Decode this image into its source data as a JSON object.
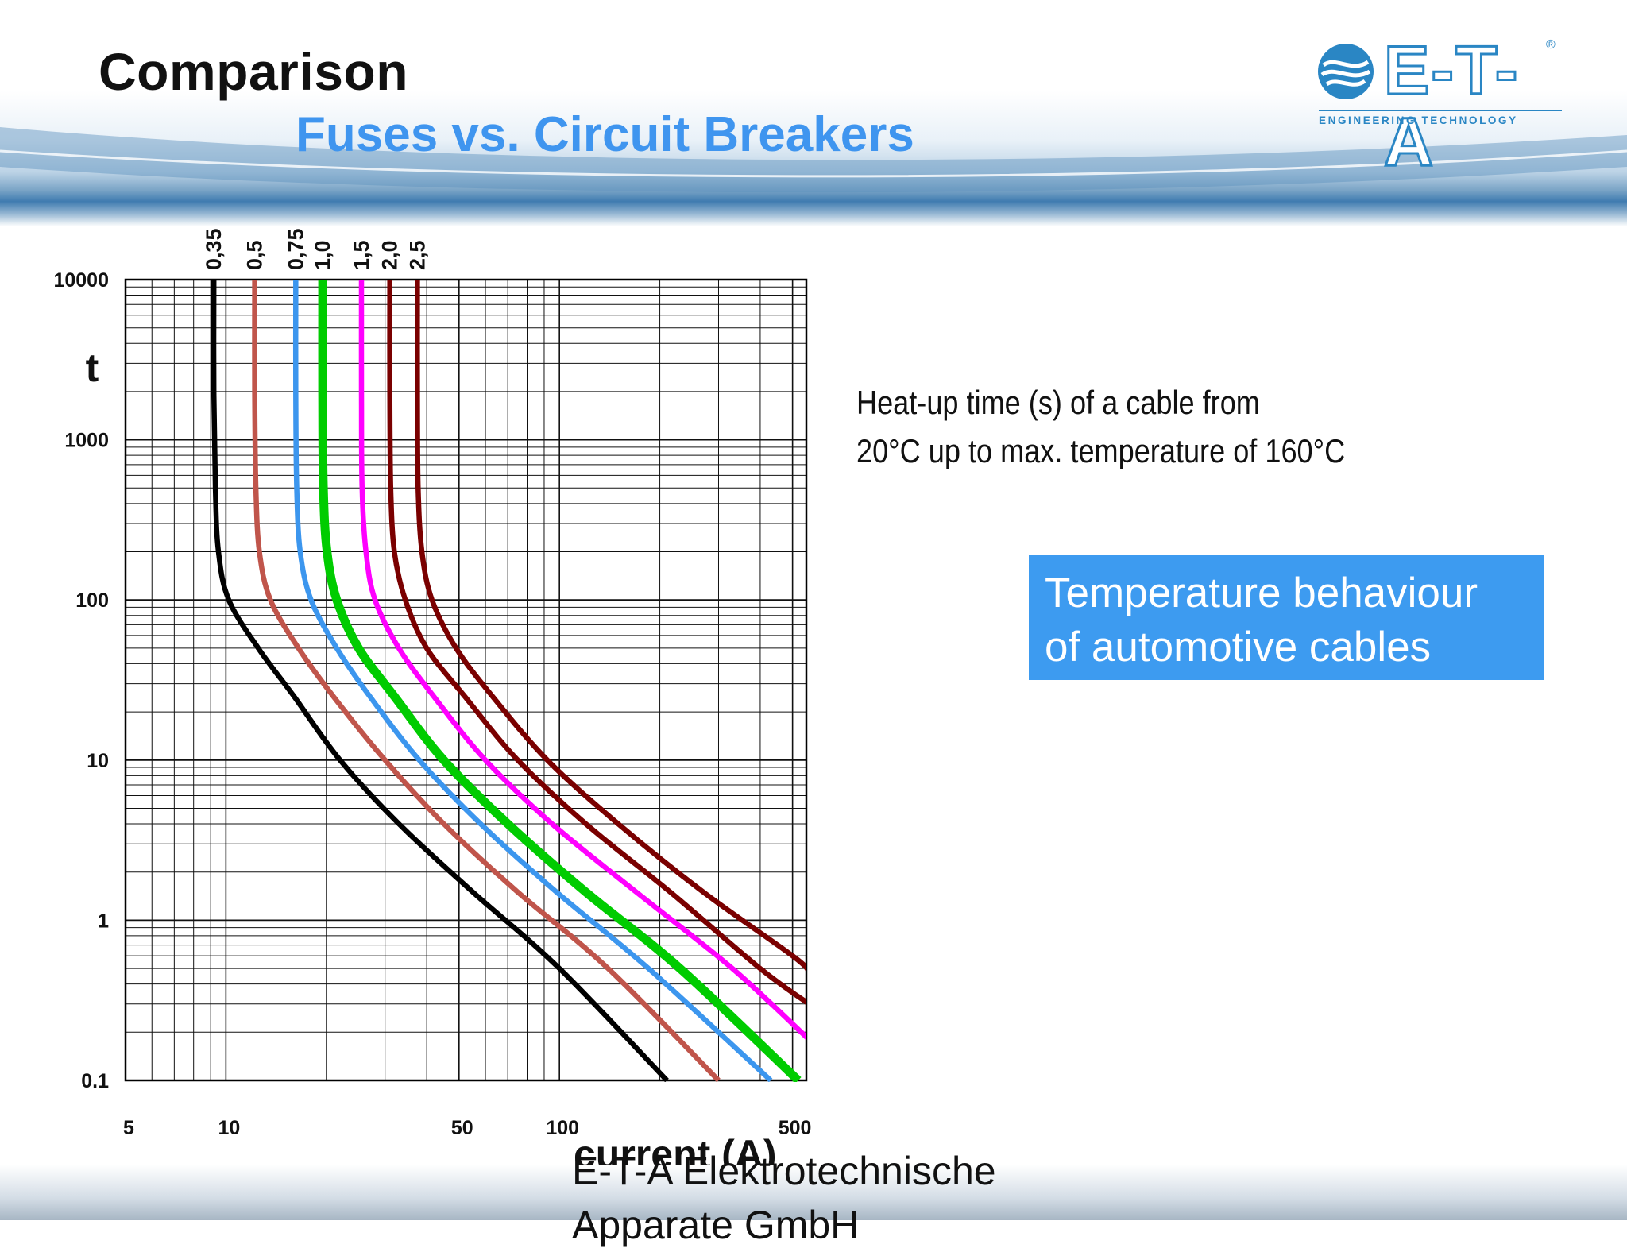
{
  "slide": {
    "title": "Comparison",
    "subtitle": "Fuses vs. Circuit Breakers",
    "footer_line1": "E-T-A Elektrotechnische",
    "footer_line2": "Apparate GmbH"
  },
  "logo": {
    "wordmark": "E-T-A",
    "registered": "®",
    "tagline": "ENGINEERING TECHNOLOGY",
    "color": "#2a86c4"
  },
  "note": {
    "line1": "Heat-up time (s) of a cable from",
    "line2": "20°C up to max. temperature of 160°C"
  },
  "callout": {
    "line1": "Temperature behaviour",
    "line2": "of automotive cables",
    "color": "#3d9bf0"
  },
  "chart_data": {
    "type": "line",
    "xscale": "log",
    "yscale": "log",
    "xlim": [
      5,
      550
    ],
    "ylim": [
      0.1,
      10000
    ],
    "xlabel": "current (A)",
    "ylabel": "t",
    "x_ticks": [
      "5",
      "10",
      "50",
      "100",
      "500"
    ],
    "y_ticks": [
      "10000",
      "1000",
      "100",
      "10",
      "1",
      "0.1"
    ],
    "grid": true,
    "series": [
      {
        "name": "0,35",
        "color": "#000000",
        "points": [
          [
            9.2,
            10000
          ],
          [
            9.2,
            2000
          ],
          [
            9.3,
            500
          ],
          [
            9.5,
            200
          ],
          [
            10.2,
            100
          ],
          [
            12.5,
            50
          ],
          [
            16,
            25
          ],
          [
            22,
            10
          ],
          [
            33,
            4
          ],
          [
            55,
            1.5
          ],
          [
            100,
            0.5
          ],
          [
            210,
            0.1
          ]
        ]
      },
      {
        "name": "0,5",
        "color": "#c0554b",
        "points": [
          [
            12.2,
            10000
          ],
          [
            12.2,
            2000
          ],
          [
            12.3,
            500
          ],
          [
            12.6,
            200
          ],
          [
            13.6,
            100
          ],
          [
            16.5,
            50
          ],
          [
            21,
            25
          ],
          [
            30,
            10
          ],
          [
            45,
            4
          ],
          [
            75,
            1.5
          ],
          [
            140,
            0.5
          ],
          [
            300,
            0.1
          ]
        ]
      },
      {
        "name": "0,75",
        "color": "#3c96ee",
        "points": [
          [
            16.2,
            10000
          ],
          [
            16.2,
            2000
          ],
          [
            16.3,
            500
          ],
          [
            16.7,
            200
          ],
          [
            18,
            100
          ],
          [
            21.5,
            50
          ],
          [
            27,
            25
          ],
          [
            38,
            10
          ],
          [
            58,
            4
          ],
          [
            98,
            1.5
          ],
          [
            185,
            0.5
          ],
          [
            430,
            0.1
          ]
        ]
      },
      {
        "name": "1,0",
        "color": "#00cc00",
        "points": [
          [
            19.5,
            10000
          ],
          [
            19.5,
            2000
          ],
          [
            19.6,
            500
          ],
          [
            20.1,
            200
          ],
          [
            21.5,
            100
          ],
          [
            25,
            50
          ],
          [
            32,
            25
          ],
          [
            45,
            10
          ],
          [
            70,
            4
          ],
          [
            120,
            1.5
          ],
          [
            230,
            0.5
          ],
          [
            520,
            0.1
          ]
        ]
      },
      {
        "name": "1,5",
        "color": "#ff00ff",
        "points": [
          [
            25.5,
            10000
          ],
          [
            25.5,
            2000
          ],
          [
            25.6,
            500
          ],
          [
            26.3,
            200
          ],
          [
            28,
            100
          ],
          [
            33,
            50
          ],
          [
            42,
            25
          ],
          [
            60,
            10
          ],
          [
            95,
            4
          ],
          [
            170,
            1.5
          ],
          [
            330,
            0.5
          ],
          [
            560,
            0.18
          ]
        ]
      },
      {
        "name": "2,0",
        "color": "#7a0000",
        "points": [
          [
            31,
            10000
          ],
          [
            31,
            2000
          ],
          [
            31.2,
            500
          ],
          [
            32,
            200
          ],
          [
            34.5,
            100
          ],
          [
            40,
            50
          ],
          [
            52,
            25
          ],
          [
            75,
            10
          ],
          [
            120,
            4
          ],
          [
            215,
            1.5
          ],
          [
            400,
            0.5
          ],
          [
            560,
            0.3
          ]
        ]
      },
      {
        "name": "2,5",
        "color": "#7a0000",
        "points": [
          [
            37.5,
            10000
          ],
          [
            37.5,
            2000
          ],
          [
            37.7,
            500
          ],
          [
            38.7,
            200
          ],
          [
            41.5,
            100
          ],
          [
            49,
            50
          ],
          [
            63,
            25
          ],
          [
            92,
            10
          ],
          [
            150,
            4
          ],
          [
            270,
            1.5
          ],
          [
            500,
            0.6
          ],
          [
            560,
            0.48
          ]
        ]
      }
    ]
  }
}
